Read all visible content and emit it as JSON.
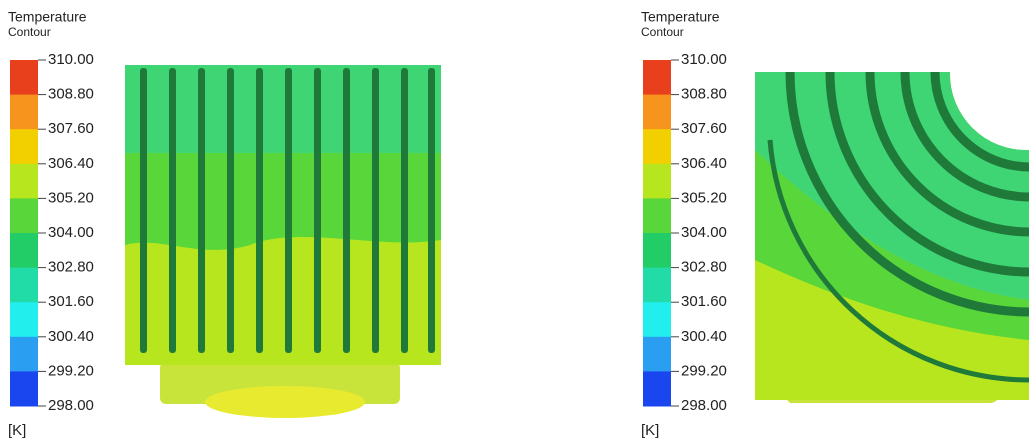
{
  "panels": [
    {
      "title": "Temperature",
      "subtitle": "Contour",
      "unit": "[K]",
      "levels": [
        "310.00",
        "308.80",
        "307.60",
        "306.40",
        "305.20",
        "304.00",
        "302.80",
        "301.60",
        "300.40",
        "299.20",
        "298.00"
      ],
      "colors": [
        "#e8401c",
        "#f7941d",
        "#f2d000",
        "#b8e61e",
        "#58d63a",
        "#22cc66",
        "#22dca8",
        "#22eeee",
        "#2a9ef0",
        "#1a46f0"
      ]
    },
    {
      "title": "Temperature",
      "subtitle": "Contour",
      "unit": "[K]",
      "levels": [
        "310.00",
        "308.80",
        "307.60",
        "306.40",
        "305.20",
        "304.00",
        "302.80",
        "301.60",
        "300.40",
        "299.20",
        "298.00"
      ],
      "colors": [
        "#e8401c",
        "#f7941d",
        "#f2d000",
        "#b8e61e",
        "#58d63a",
        "#22cc66",
        "#22dca8",
        "#22eeee",
        "#2a9ef0",
        "#1a46f0"
      ]
    }
  ]
}
